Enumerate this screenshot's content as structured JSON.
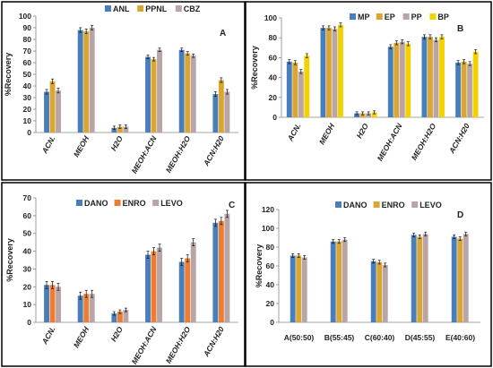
{
  "chart_data": [
    {
      "type": "bar",
      "panel_label": "A",
      "ylabel": "%Recovery",
      "ylim": [
        0,
        100
      ],
      "yticks": [
        0,
        10,
        20,
        30,
        40,
        50,
        60,
        70,
        80,
        90,
        100
      ],
      "categories": [
        "ACN.",
        "MEOH",
        "H2O",
        "MEOH:ACN",
        "MEOH:H2O",
        "ACN:H20"
      ],
      "legend_position": "top-center",
      "series": [
        {
          "name": "ANL",
          "color": "#4a7ebb",
          "values": [
            35,
            88,
            4,
            65,
            71,
            33
          ],
          "errors": [
            2,
            2,
            1.5,
            1.5,
            1.5,
            2
          ]
        },
        {
          "name": "PPNL",
          "color": "#d9a632",
          "values": [
            44,
            87,
            5,
            63,
            68,
            45
          ],
          "errors": [
            2,
            2,
            1.5,
            1.5,
            1.5,
            2
          ]
        },
        {
          "name": "CBZ",
          "color": "#b9a5a5",
          "values": [
            36,
            90,
            5,
            71,
            66,
            35
          ],
          "errors": [
            2,
            2,
            1.5,
            1.5,
            1.5,
            2
          ]
        }
      ]
    },
    {
      "type": "bar",
      "panel_label": "B",
      "ylabel": "%Recovery",
      "ylim": [
        0,
        100
      ],
      "yticks": [
        0,
        20,
        40,
        60,
        80,
        100
      ],
      "categories": [
        "ACN.",
        "MEOH",
        "H2O",
        "MEOH:ACN",
        "MEOH:H2O",
        "ACN:H20"
      ],
      "legend_position": "top-center",
      "series": [
        {
          "name": "MP",
          "color": "#4a7ebb",
          "values": [
            56,
            90,
            4,
            71,
            81,
            55
          ],
          "errors": [
            2,
            2,
            1.5,
            2,
            2,
            2
          ]
        },
        {
          "name": "EP",
          "color": "#d9a632",
          "values": [
            55,
            90,
            4,
            75,
            81,
            56
          ],
          "errors": [
            2,
            2,
            1.5,
            2,
            2,
            2
          ]
        },
        {
          "name": "PP",
          "color": "#b9a5a5",
          "values": [
            46,
            89,
            4,
            76,
            78,
            54
          ],
          "errors": [
            2,
            2,
            1.5,
            2,
            2,
            2
          ]
        },
        {
          "name": "BP",
          "color": "#f2d200",
          "values": [
            62,
            93,
            5,
            74,
            81,
            66
          ],
          "errors": [
            2,
            2,
            1.5,
            2,
            2,
            2
          ]
        }
      ]
    },
    {
      "type": "bar",
      "panel_label": "C",
      "ylabel": "%Recovery",
      "ylim": [
        0,
        70
      ],
      "yticks": [
        0,
        10,
        20,
        30,
        40,
        50,
        60,
        70
      ],
      "categories": [
        "ACN.",
        "MEOH",
        "H2O",
        "MEOH:ACN",
        "MEOH:H2O",
        "ACN:H20"
      ],
      "legend_position": "top-center",
      "series": [
        {
          "name": "DANO",
          "color": "#4a7ebb",
          "values": [
            21,
            15,
            5,
            38,
            34,
            56
          ],
          "errors": [
            2,
            2,
            1,
            2,
            2,
            2
          ]
        },
        {
          "name": "ENRO",
          "color": "#ed7d31",
          "values": [
            21,
            16,
            6,
            40,
            36,
            57
          ],
          "errors": [
            2,
            2,
            1,
            2,
            2,
            2
          ]
        },
        {
          "name": "LEVO",
          "color": "#b9a5a5",
          "values": [
            20,
            16,
            7,
            42,
            45,
            61
          ],
          "errors": [
            2,
            2,
            1,
            2,
            2,
            2
          ]
        }
      ]
    },
    {
      "type": "bar",
      "panel_label": "D",
      "ylabel": "%Recovery",
      "ylim": [
        0,
        120
      ],
      "yticks": [
        0,
        20,
        40,
        60,
        80,
        100,
        120
      ],
      "categories": [
        "A(50:50)",
        "B(55:45)",
        "C(60:40)",
        "D(45:55)",
        "E(40:60)"
      ],
      "legend_position": "top-center",
      "series": [
        {
          "name": "DANO",
          "color": "#4a7ebb",
          "values": [
            71,
            86,
            65,
            93,
            91
          ],
          "errors": [
            2,
            2,
            2,
            2,
            2
          ]
        },
        {
          "name": "ENRO",
          "color": "#d9a632",
          "values": [
            71,
            86,
            64,
            91,
            89
          ],
          "errors": [
            2,
            2,
            2,
            2,
            2
          ]
        },
        {
          "name": "LEVO",
          "color": "#b9a5a5",
          "values": [
            69,
            88,
            61,
            94,
            94
          ],
          "errors": [
            2,
            2,
            2,
            2,
            2
          ]
        }
      ]
    }
  ]
}
